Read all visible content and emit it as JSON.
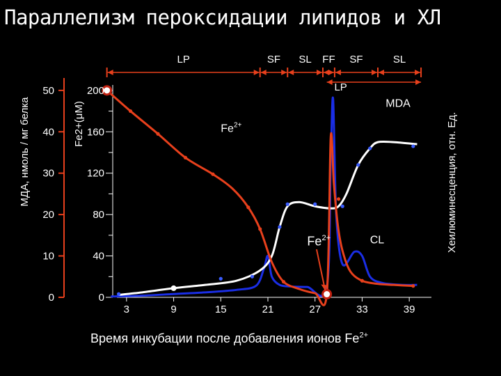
{
  "title": "Параллелизм пероксидации липидов и ХЛ",
  "colors": {
    "background": "#000000",
    "fe": "#e8401c",
    "mda": "#ffffff",
    "cl": "#1a2ee6",
    "phase_markers": "#e8401c",
    "points": "#3a5cff"
  },
  "chart_data": {
    "type": "line",
    "xlabel": "Время инкубации после добавления ионов Fe",
    "xlabel_sup": "2+",
    "x_ticks": [
      3,
      9,
      15,
      21,
      27,
      33,
      39
    ],
    "xlim": [
      0,
      42
    ],
    "y_left_outer": {
      "label": "МДА, нмоль / мг белка",
      "ticks": [
        0,
        10,
        20,
        30,
        40,
        50
      ],
      "ylim": [
        0,
        53
      ]
    },
    "y_left_inner": {
      "label": "Fe2+(μM)",
      "ticks": [
        0,
        40,
        80,
        120,
        160,
        200
      ],
      "ylim": [
        0,
        212
      ]
    },
    "y_right": {
      "label": "Хеилюминесценция, отн. Ед."
    },
    "series": [
      {
        "key": "fe",
        "x": [
          0.5,
          3.5,
          7,
          10.5,
          14,
          16.5,
          18.5,
          20,
          21.5,
          23,
          25,
          27,
          28.5,
          29,
          29.4,
          29.9,
          30.5,
          31.5,
          33,
          35,
          37,
          39.5
        ],
        "y": [
          200,
          180,
          158,
          135,
          119,
          105,
          87,
          66,
          34,
          15,
          8,
          4,
          3,
          155,
          110,
          70,
          45,
          25,
          16,
          13,
          12,
          11
        ]
      },
      {
        "key": "mda",
        "x": [
          2,
          5,
          9,
          13,
          17,
          20,
          21.5,
          22.5,
          23.5,
          25,
          27,
          29,
          30,
          31,
          32.5,
          34,
          35,
          37,
          40
        ],
        "y": [
          0.6,
          1.2,
          2.2,
          3.0,
          4.0,
          6.5,
          10,
          17,
          22,
          23,
          22,
          21.5,
          22,
          25,
          32,
          36,
          37.5,
          37.5,
          37
        ]
      },
      {
        "key": "cl",
        "x": [
          1,
          5,
          9,
          13,
          17,
          19.5,
          20.5,
          21,
          21.5,
          22.5,
          24,
          26,
          28.5,
          29,
          29.3,
          29.7,
          30.5,
          32,
          33,
          34,
          35.5,
          38,
          40
        ],
        "y": [
          0.2,
          0.4,
          0.8,
          1.2,
          1.8,
          2.8,
          7,
          10,
          5,
          3,
          2.6,
          2.5,
          2.5,
          33,
          48,
          20,
          8,
          11,
          10,
          5,
          3.5,
          3,
          3
        ]
      }
    ],
    "fe_markers": {
      "x": [
        3.5,
        7,
        10.5,
        14,
        18.5,
        20,
        23,
        28.5,
        30,
        33,
        39.5
      ],
      "y": [
        180,
        158,
        135,
        119,
        87,
        66,
        15,
        3,
        95,
        16,
        11
      ]
    },
    "mda_markers": {
      "x": [
        2,
        15,
        19,
        22.5,
        23.5,
        27,
        30.5,
        32.5,
        34,
        39.5
      ],
      "y": [
        0.8,
        4.5,
        5,
        17,
        22.5,
        22.5,
        22,
        32,
        36,
        36.5
      ]
    },
    "open_circles": [
      {
        "series": "fe",
        "x": 0.5,
        "y": 200
      },
      {
        "series": "fe",
        "x": 28.5,
        "y": 3
      }
    ],
    "filled_dots": [
      {
        "series": "mda",
        "x": 9,
        "y": 2.2
      }
    ],
    "annotations": [
      {
        "text": "Fe",
        "sup": "2+",
        "x": 15,
        "y": 160
      },
      {
        "text": "MDA",
        "x": 36,
        "y": 46
      },
      {
        "text": "Fe",
        "sup": "2+",
        "x": 26,
        "y": 12.5
      },
      {
        "text": "CL",
        "x": 34,
        "y": 13
      }
    ],
    "phases": {
      "top": [
        {
          "label": "LP",
          "from": 0.5,
          "to": 20
        },
        {
          "label": "SF",
          "from": 20,
          "to": 23.5
        },
        {
          "label": "SL",
          "from": 23.5,
          "to": 28
        },
        {
          "label": "FF",
          "from": 28,
          "to": 29.5
        },
        {
          "label": "SF",
          "from": 29.5,
          "to": 35
        },
        {
          "label": "SL",
          "from": 35,
          "to": 40.5
        }
      ],
      "lp_second": {
        "label": "LP",
        "from": 28.5,
        "to": 40.5
      }
    }
  }
}
